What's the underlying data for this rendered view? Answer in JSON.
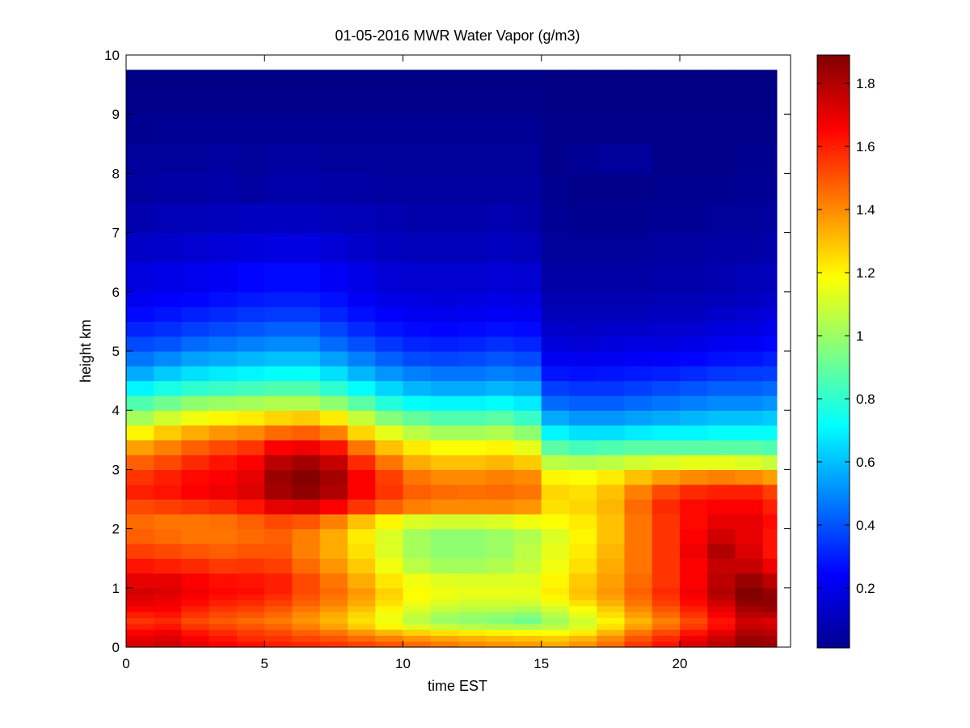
{
  "chart_data": {
    "type": "heatmap",
    "title": "01-05-2016 MWR Water Vapor (g/m3)",
    "xlabel": "time EST",
    "ylabel": "height km",
    "xlim": [
      0,
      24
    ],
    "ylim": [
      0,
      10
    ],
    "x_ticks": [
      0,
      5,
      10,
      15,
      20
    ],
    "y_ticks": [
      0,
      1,
      2,
      3,
      4,
      5,
      6,
      7,
      8,
      9,
      10
    ],
    "colorbar": {
      "min": 0.01,
      "max": 1.89,
      "ticks": [
        0.2,
        0.4,
        0.6,
        0.8,
        1,
        1.2,
        1.4,
        1.6,
        1.8
      ],
      "tick_labels": [
        "0.2",
        "0.4",
        "0.6",
        "0.8",
        "1",
        "1.2",
        "1.4",
        "1.6",
        "1.8"
      ],
      "colormap": "jet"
    },
    "grid": false,
    "time_hours": [
      0.0,
      1.0,
      2.0,
      3.0,
      4.0,
      5.0,
      6.0,
      7.0,
      8.0,
      9.0,
      10.0,
      11.0,
      12.0,
      13.0,
      14.0,
      15.0,
      16.0,
      17.0,
      18.0,
      19.0,
      20.0,
      21.0,
      22.0,
      23.0
    ],
    "height_km": [
      0,
      0.1,
      0.2,
      0.3,
      0.4,
      0.5,
      0.6,
      0.7,
      0.8,
      0.9,
      1.0,
      1.25,
      1.5,
      1.75,
      2.0,
      2.25,
      2.5,
      2.75,
      3.0,
      3.25,
      3.5,
      3.75,
      4.0,
      4.25,
      4.5,
      4.75,
      5.0,
      5.25,
      5.5,
      5.75,
      6.0,
      6.5,
      7.0,
      7.5,
      8.0,
      8.5,
      9.0,
      9.5,
      9.75
    ],
    "values_rows_by_height": [
      [
        1.73,
        1.75,
        1.7,
        1.66,
        1.63,
        1.6,
        1.58,
        1.56,
        1.53,
        1.5,
        1.46,
        1.43,
        1.4,
        1.38,
        1.37,
        1.34,
        1.38,
        1.45,
        1.55,
        1.62,
        1.72,
        1.78,
        1.86,
        1.84
      ],
      [
        1.7,
        1.72,
        1.66,
        1.62,
        1.58,
        1.56,
        1.53,
        1.5,
        1.46,
        1.42,
        1.38,
        1.35,
        1.33,
        1.31,
        1.3,
        1.28,
        1.32,
        1.4,
        1.5,
        1.58,
        1.68,
        1.75,
        1.84,
        1.82
      ],
      [
        1.66,
        1.68,
        1.62,
        1.58,
        1.55,
        1.52,
        1.48,
        1.44,
        1.38,
        1.32,
        1.27,
        1.24,
        1.22,
        1.2,
        1.19,
        1.18,
        1.22,
        1.32,
        1.44,
        1.52,
        1.62,
        1.7,
        1.8,
        1.78
      ],
      [
        1.6,
        1.62,
        1.56,
        1.53,
        1.5,
        1.47,
        1.42,
        1.36,
        1.28,
        1.2,
        1.12,
        1.08,
        1.05,
        1.04,
        1.03,
        1.06,
        1.12,
        1.24,
        1.36,
        1.45,
        1.55,
        1.64,
        1.76,
        1.74
      ],
      [
        1.56,
        1.58,
        1.52,
        1.49,
        1.46,
        1.43,
        1.38,
        1.32,
        1.24,
        1.16,
        1.06,
        1.0,
        0.98,
        0.96,
        0.92,
        1.02,
        1.1,
        1.2,
        1.32,
        1.42,
        1.52,
        1.62,
        1.74,
        1.72
      ],
      [
        1.6,
        1.62,
        1.56,
        1.52,
        1.5,
        1.46,
        1.4,
        1.34,
        1.26,
        1.16,
        1.08,
        1.02,
        1.0,
        0.99,
        0.97,
        1.05,
        1.14,
        1.24,
        1.36,
        1.46,
        1.56,
        1.66,
        1.78,
        1.78
      ],
      [
        1.66,
        1.66,
        1.6,
        1.56,
        1.54,
        1.5,
        1.44,
        1.38,
        1.3,
        1.2,
        1.12,
        1.08,
        1.06,
        1.06,
        1.04,
        1.1,
        1.18,
        1.28,
        1.4,
        1.5,
        1.6,
        1.7,
        1.82,
        1.84
      ],
      [
        1.7,
        1.68,
        1.64,
        1.6,
        1.58,
        1.54,
        1.48,
        1.42,
        1.34,
        1.24,
        1.16,
        1.12,
        1.1,
        1.1,
        1.1,
        1.16,
        1.24,
        1.33,
        1.44,
        1.54,
        1.64,
        1.74,
        1.86,
        1.86
      ],
      [
        1.72,
        1.7,
        1.66,
        1.63,
        1.61,
        1.57,
        1.5,
        1.44,
        1.36,
        1.26,
        1.18,
        1.15,
        1.13,
        1.13,
        1.13,
        1.2,
        1.28,
        1.36,
        1.46,
        1.56,
        1.66,
        1.78,
        1.88,
        1.86
      ],
      [
        1.74,
        1.72,
        1.68,
        1.65,
        1.64,
        1.6,
        1.52,
        1.46,
        1.38,
        1.27,
        1.19,
        1.16,
        1.15,
        1.15,
        1.15,
        1.22,
        1.3,
        1.38,
        1.48,
        1.58,
        1.68,
        1.8,
        1.89,
        1.84
      ],
      [
        1.7,
        1.7,
        1.66,
        1.63,
        1.62,
        1.6,
        1.52,
        1.44,
        1.34,
        1.23,
        1.16,
        1.13,
        1.12,
        1.12,
        1.13,
        1.2,
        1.28,
        1.36,
        1.46,
        1.56,
        1.66,
        1.78,
        1.84,
        1.78
      ],
      [
        1.62,
        1.6,
        1.58,
        1.55,
        1.56,
        1.54,
        1.46,
        1.38,
        1.28,
        1.16,
        1.06,
        1.02,
        1.02,
        1.04,
        1.08,
        1.16,
        1.24,
        1.34,
        1.44,
        1.56,
        1.66,
        1.76,
        1.76,
        1.68
      ],
      [
        1.54,
        1.52,
        1.5,
        1.48,
        1.5,
        1.5,
        1.42,
        1.34,
        1.24,
        1.12,
        1.02,
        0.98,
        0.98,
        1.0,
        1.06,
        1.14,
        1.22,
        1.32,
        1.44,
        1.56,
        1.68,
        1.8,
        1.72,
        1.62
      ],
      [
        1.48,
        1.46,
        1.44,
        1.44,
        1.46,
        1.48,
        1.42,
        1.34,
        1.22,
        1.12,
        1.02,
        0.98,
        0.98,
        1.0,
        1.04,
        1.12,
        1.2,
        1.3,
        1.44,
        1.56,
        1.66,
        1.74,
        1.7,
        1.62
      ],
      [
        1.46,
        1.44,
        1.44,
        1.45,
        1.48,
        1.52,
        1.5,
        1.42,
        1.3,
        1.2,
        1.12,
        1.1,
        1.1,
        1.12,
        1.16,
        1.18,
        1.22,
        1.3,
        1.44,
        1.56,
        1.64,
        1.7,
        1.7,
        1.64
      ],
      [
        1.52,
        1.54,
        1.56,
        1.58,
        1.62,
        1.7,
        1.72,
        1.66,
        1.56,
        1.48,
        1.42,
        1.4,
        1.4,
        1.4,
        1.38,
        1.24,
        1.26,
        1.32,
        1.46,
        1.58,
        1.64,
        1.66,
        1.66,
        1.6
      ],
      [
        1.6,
        1.62,
        1.66,
        1.68,
        1.72,
        1.82,
        1.86,
        1.8,
        1.66,
        1.56,
        1.48,
        1.46,
        1.45,
        1.46,
        1.44,
        1.26,
        1.24,
        1.3,
        1.42,
        1.52,
        1.58,
        1.6,
        1.6,
        1.54
      ],
      [
        1.56,
        1.6,
        1.64,
        1.66,
        1.7,
        1.84,
        1.88,
        1.82,
        1.66,
        1.54,
        1.44,
        1.4,
        1.4,
        1.42,
        1.4,
        1.2,
        1.18,
        1.22,
        1.3,
        1.36,
        1.4,
        1.42,
        1.4,
        1.36
      ],
      [
        1.48,
        1.52,
        1.58,
        1.62,
        1.66,
        1.78,
        1.82,
        1.76,
        1.58,
        1.44,
        1.34,
        1.3,
        1.3,
        1.32,
        1.28,
        1.06,
        1.04,
        1.06,
        1.1,
        1.12,
        1.14,
        1.14,
        1.12,
        1.08
      ],
      [
        1.36,
        1.42,
        1.48,
        1.52,
        1.56,
        1.66,
        1.68,
        1.62,
        1.44,
        1.3,
        1.22,
        1.18,
        1.18,
        1.2,
        1.14,
        0.88,
        0.84,
        0.86,
        0.88,
        0.88,
        0.88,
        0.88,
        0.88,
        0.86
      ],
      [
        1.2,
        1.28,
        1.34,
        1.38,
        1.4,
        1.46,
        1.48,
        1.42,
        1.26,
        1.14,
        1.06,
        1.02,
        1.02,
        1.04,
        0.98,
        0.7,
        0.66,
        0.66,
        0.68,
        0.7,
        0.7,
        0.72,
        0.72,
        0.72
      ],
      [
        1.02,
        1.1,
        1.16,
        1.2,
        1.22,
        1.26,
        1.28,
        1.22,
        1.08,
        0.96,
        0.9,
        0.86,
        0.86,
        0.88,
        0.82,
        0.56,
        0.52,
        0.52,
        0.54,
        0.56,
        0.58,
        0.6,
        0.6,
        0.62
      ],
      [
        0.86,
        0.92,
        0.98,
        1.0,
        1.02,
        1.04,
        1.04,
        0.98,
        0.88,
        0.78,
        0.72,
        0.7,
        0.7,
        0.72,
        0.68,
        0.44,
        0.42,
        0.42,
        0.44,
        0.46,
        0.48,
        0.5,
        0.5,
        0.52
      ],
      [
        0.7,
        0.76,
        0.8,
        0.82,
        0.84,
        0.86,
        0.86,
        0.8,
        0.72,
        0.64,
        0.58,
        0.56,
        0.56,
        0.58,
        0.56,
        0.36,
        0.34,
        0.34,
        0.36,
        0.38,
        0.4,
        0.42,
        0.42,
        0.44
      ],
      [
        0.56,
        0.62,
        0.66,
        0.68,
        0.7,
        0.72,
        0.72,
        0.66,
        0.58,
        0.52,
        0.48,
        0.46,
        0.46,
        0.48,
        0.46,
        0.28,
        0.27,
        0.28,
        0.29,
        0.3,
        0.32,
        0.34,
        0.35,
        0.36
      ],
      [
        0.46,
        0.5,
        0.54,
        0.56,
        0.58,
        0.6,
        0.6,
        0.54,
        0.48,
        0.42,
        0.38,
        0.37,
        0.38,
        0.4,
        0.38,
        0.22,
        0.21,
        0.22,
        0.23,
        0.24,
        0.25,
        0.27,
        0.28,
        0.3
      ],
      [
        0.38,
        0.4,
        0.44,
        0.46,
        0.48,
        0.5,
        0.5,
        0.44,
        0.39,
        0.34,
        0.31,
        0.3,
        0.31,
        0.33,
        0.31,
        0.18,
        0.17,
        0.18,
        0.19,
        0.19,
        0.2,
        0.22,
        0.23,
        0.25
      ],
      [
        0.31,
        0.33,
        0.36,
        0.38,
        0.4,
        0.42,
        0.42,
        0.37,
        0.32,
        0.28,
        0.26,
        0.25,
        0.26,
        0.27,
        0.26,
        0.15,
        0.14,
        0.15,
        0.15,
        0.16,
        0.16,
        0.18,
        0.19,
        0.21
      ],
      [
        0.26,
        0.28,
        0.3,
        0.32,
        0.34,
        0.35,
        0.35,
        0.31,
        0.27,
        0.24,
        0.22,
        0.21,
        0.22,
        0.23,
        0.22,
        0.12,
        0.12,
        0.12,
        0.12,
        0.13,
        0.13,
        0.15,
        0.16,
        0.18
      ],
      [
        0.22,
        0.24,
        0.25,
        0.27,
        0.29,
        0.3,
        0.3,
        0.27,
        0.23,
        0.2,
        0.19,
        0.18,
        0.19,
        0.2,
        0.19,
        0.1,
        0.1,
        0.1,
        0.1,
        0.11,
        0.11,
        0.12,
        0.13,
        0.15
      ],
      [
        0.19,
        0.2,
        0.21,
        0.23,
        0.25,
        0.26,
        0.26,
        0.23,
        0.2,
        0.17,
        0.16,
        0.16,
        0.16,
        0.17,
        0.16,
        0.08,
        0.08,
        0.08,
        0.08,
        0.09,
        0.09,
        0.1,
        0.11,
        0.12
      ],
      [
        0.14,
        0.15,
        0.16,
        0.17,
        0.18,
        0.19,
        0.19,
        0.17,
        0.15,
        0.13,
        0.12,
        0.12,
        0.12,
        0.13,
        0.12,
        0.06,
        0.06,
        0.06,
        0.06,
        0.07,
        0.07,
        0.08,
        0.08,
        0.09
      ],
      [
        0.1,
        0.11,
        0.11,
        0.12,
        0.13,
        0.13,
        0.13,
        0.12,
        0.11,
        0.1,
        0.09,
        0.09,
        0.09,
        0.1,
        0.09,
        0.05,
        0.04,
        0.04,
        0.04,
        0.05,
        0.05,
        0.06,
        0.06,
        0.07
      ],
      [
        0.07,
        0.08,
        0.08,
        0.09,
        0.07,
        0.09,
        0.09,
        0.08,
        0.08,
        0.07,
        0.07,
        0.07,
        0.07,
        0.07,
        0.07,
        0.04,
        0.03,
        0.03,
        0.03,
        0.04,
        0.04,
        0.04,
        0.05,
        0.05
      ],
      [
        0.06,
        0.06,
        0.06,
        0.07,
        0.06,
        0.07,
        0.07,
        0.06,
        0.06,
        0.06,
        0.06,
        0.06,
        0.06,
        0.06,
        0.06,
        0.03,
        0.05,
        0.06,
        0.06,
        0.03,
        0.03,
        0.03,
        0.04,
        0.04
      ],
      [
        0.04,
        0.05,
        0.05,
        0.05,
        0.05,
        0.05,
        0.05,
        0.05,
        0.05,
        0.05,
        0.05,
        0.05,
        0.05,
        0.05,
        0.05,
        0.03,
        0.03,
        0.03,
        0.03,
        0.03,
        0.03,
        0.03,
        0.03,
        0.03
      ],
      [
        0.03,
        0.03,
        0.03,
        0.03,
        0.03,
        0.03,
        0.03,
        0.03,
        0.03,
        0.03,
        0.03,
        0.03,
        0.03,
        0.03,
        0.03,
        0.02,
        0.02,
        0.02,
        0.02,
        0.02,
        0.02,
        0.02,
        0.02,
        0.02
      ],
      [
        0.02,
        0.02,
        0.02,
        0.02,
        0.02,
        0.02,
        0.02,
        0.02,
        0.02,
        0.02,
        0.02,
        0.02,
        0.02,
        0.02,
        0.02,
        0.01,
        0.01,
        0.01,
        0.01,
        0.01,
        0.01,
        0.01,
        0.01,
        0.01
      ],
      [
        0.01,
        0.01,
        0.01,
        0.01,
        0.01,
        0.01,
        0.01,
        0.01,
        0.01,
        0.01,
        0.01,
        0.01,
        0.01,
        0.01,
        0.01,
        0.01,
        0.01,
        0.01,
        0.01,
        0.01,
        0.01,
        0.01,
        0.01,
        0.01
      ]
    ]
  }
}
